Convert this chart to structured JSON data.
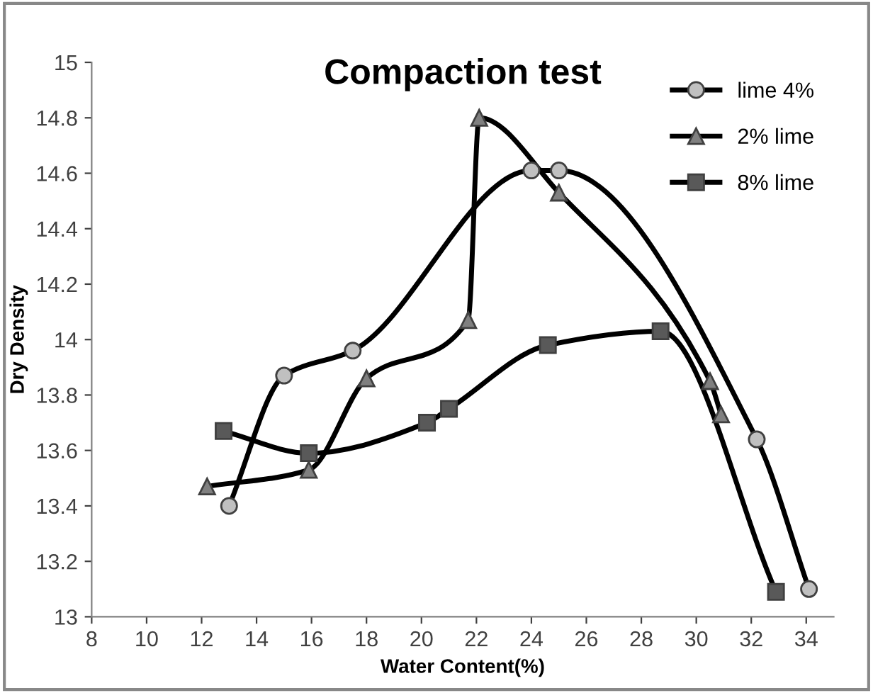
{
  "chart_data": {
    "type": "line",
    "title": "Compaction test",
    "xlabel": "Water Content(%)",
    "ylabel": "Dry Density",
    "xlim": [
      8,
      35
    ],
    "xticks": [
      8,
      10,
      12,
      14,
      16,
      18,
      20,
      22,
      24,
      26,
      28,
      30,
      32,
      34
    ],
    "ylim": [
      13,
      15
    ],
    "yticks": [
      13,
      13.2,
      13.4,
      13.6,
      13.8,
      14,
      14.2,
      14.4,
      14.6,
      14.8,
      15
    ],
    "grid": false,
    "legend": "top right",
    "series": [
      {
        "name": "lime 4%",
        "color": "#c0c0c0",
        "marker": "circle",
        "x": [
          13.0,
          15.0,
          17.5,
          24.0,
          25.0,
          32.2,
          34.1
        ],
        "values": [
          13.4,
          13.87,
          13.96,
          14.61,
          14.61,
          13.64,
          13.1
        ]
      },
      {
        "name": "2% lime",
        "color": "#808080",
        "marker": "triangle",
        "x": [
          12.2,
          15.9,
          18.0,
          21.7,
          22.1,
          25.0,
          30.5,
          30.9
        ],
        "values": [
          13.47,
          13.53,
          13.86,
          14.07,
          14.8,
          14.53,
          13.85,
          13.73
        ]
      },
      {
        "name": "8% lime",
        "color": "#595959",
        "marker": "square",
        "x": [
          12.8,
          15.9,
          20.2,
          21.0,
          24.6,
          28.7,
          32.9
        ],
        "values": [
          13.67,
          13.59,
          13.7,
          13.75,
          13.98,
          14.03,
          13.09
        ]
      }
    ]
  }
}
